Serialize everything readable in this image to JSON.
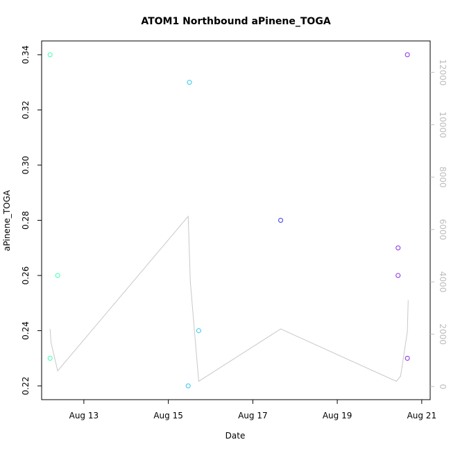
{
  "chart_data": {
    "type": "scatter",
    "title": "ATOM1 Northbound aPinene_TOGA",
    "xlabel": "Date",
    "ylabel": "aPinene_TOGA",
    "x_ticks": [
      "Aug 13",
      "Aug 15",
      "Aug 17",
      "Aug 19",
      "Aug 21"
    ],
    "x_tick_days": [
      13,
      15,
      17,
      19,
      21
    ],
    "xlim_days": [
      12.0,
      21.2
    ],
    "ylim": [
      0.215,
      0.345
    ],
    "y_ticks": [
      0.22,
      0.24,
      0.26,
      0.28,
      0.3,
      0.32,
      0.34
    ],
    "y_tick_labels": [
      "0.22",
      "0.24",
      "0.26",
      "0.28",
      "0.30",
      "0.32",
      "0.34"
    ],
    "right_axis": {
      "color": "#bdbdbd",
      "ylim": [
        -500,
        13200
      ],
      "ticks": [
        0,
        2000,
        4000,
        6000,
        8000,
        10000,
        12000
      ],
      "tick_labels": [
        "0",
        "2000",
        "4000",
        "6000",
        "8000",
        "10000",
        "12000"
      ]
    },
    "points": [
      {
        "day": 12.2,
        "y": 0.34,
        "color": "#40ffb0"
      },
      {
        "day": 12.2,
        "y": 0.23,
        "color": "#40ffb0"
      },
      {
        "day": 12.38,
        "y": 0.26,
        "color": "#40ffb0"
      },
      {
        "day": 15.5,
        "y": 0.33,
        "color": "#30c8f0"
      },
      {
        "day": 15.47,
        "y": 0.22,
        "color": "#30c8f0"
      },
      {
        "day": 15.72,
        "y": 0.24,
        "color": "#30c8f0"
      },
      {
        "day": 17.66,
        "y": 0.28,
        "color": "#3838f0"
      },
      {
        "day": 20.44,
        "y": 0.27,
        "color": "#8a2be2"
      },
      {
        "day": 20.44,
        "y": 0.26,
        "color": "#8a2be2"
      },
      {
        "day": 20.66,
        "y": 0.34,
        "color": "#8a2be2"
      },
      {
        "day": 20.66,
        "y": 0.23,
        "color": "#8a2be2"
      }
    ],
    "altitude_series": {
      "color": "#c8c8c8",
      "points": [
        {
          "day": 12.2,
          "value": 2200
        },
        {
          "day": 12.22,
          "value": 1700
        },
        {
          "day": 12.38,
          "value": 600
        },
        {
          "day": 15.47,
          "value": 6500
        },
        {
          "day": 15.52,
          "value": 4000
        },
        {
          "day": 15.72,
          "value": 200
        },
        {
          "day": 17.66,
          "value": 2200
        },
        {
          "day": 20.4,
          "value": 200
        },
        {
          "day": 20.5,
          "value": 400
        },
        {
          "day": 20.66,
          "value": 2100
        },
        {
          "day": 20.68,
          "value": 3300
        }
      ]
    }
  }
}
